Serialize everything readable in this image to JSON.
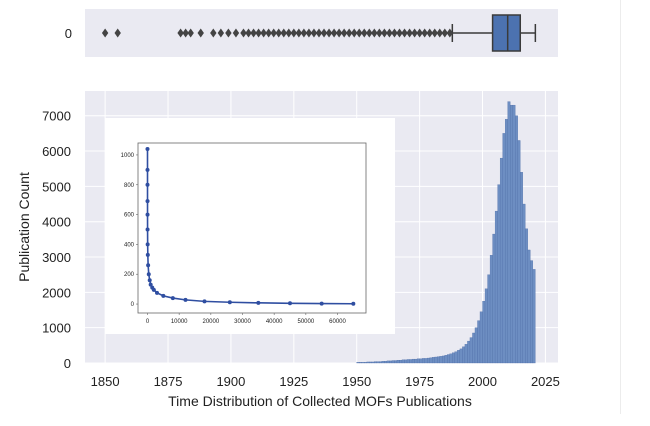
{
  "colors": {
    "plot_bg": "#eaeaf2",
    "grid": "#ffffff",
    "bar": "#6d8ec2",
    "bar_edge": "#4a6aa5",
    "box": "#4c72b0",
    "whisker": "#3a3a3a",
    "inset_line": "#2f4ea1"
  },
  "chart_data": [
    {
      "type": "box",
      "category_labels": [
        "0"
      ],
      "stats": {
        "whisker_low": 1988,
        "q1": 2004,
        "median": 2010,
        "q3": 2015,
        "whisker_high": 2021
      },
      "outliers": [
        1850,
        1855,
        1880,
        1882,
        1884,
        1888,
        1893,
        1896,
        1899,
        1902,
        1905,
        1907,
        1909,
        1911,
        1913,
        1915,
        1917,
        1919,
        1921,
        1923,
        1925,
        1927,
        1929,
        1931,
        1933,
        1935,
        1937,
        1939,
        1941,
        1943,
        1945,
        1947,
        1949,
        1951,
        1953,
        1955,
        1957,
        1959,
        1961,
        1963,
        1965,
        1967,
        1969,
        1971,
        1973,
        1975,
        1977,
        1979,
        1981,
        1983,
        1985,
        1987
      ],
      "xlim": [
        1842,
        2030
      ]
    },
    {
      "type": "bar",
      "xlabel": "Time Distribution of Collected MOFs Publications",
      "ylabel": "Publication Count",
      "xticks": [
        1850,
        1875,
        1900,
        1925,
        1950,
        1975,
        2000,
        2025
      ],
      "yticks": [
        0,
        1000,
        2000,
        3000,
        4000,
        5000,
        6000,
        7000
      ],
      "xlim": [
        1842,
        2030
      ],
      "ylim": [
        0,
        7700
      ],
      "x": [
        1950,
        1951,
        1952,
        1953,
        1954,
        1955,
        1956,
        1957,
        1958,
        1959,
        1960,
        1961,
        1962,
        1963,
        1964,
        1965,
        1966,
        1967,
        1968,
        1969,
        1970,
        1971,
        1972,
        1973,
        1974,
        1975,
        1976,
        1977,
        1978,
        1979,
        1980,
        1981,
        1982,
        1983,
        1984,
        1985,
        1986,
        1987,
        1988,
        1989,
        1990,
        1991,
        1992,
        1993,
        1994,
        1995,
        1996,
        1997,
        1998,
        1999,
        2000,
        2001,
        2002,
        2003,
        2004,
        2005,
        2006,
        2007,
        2008,
        2009,
        2010,
        2011,
        2012,
        2013,
        2014,
        2015,
        2016,
        2017,
        2018,
        2019,
        2020
      ],
      "values": [
        20,
        20,
        20,
        20,
        30,
        30,
        30,
        40,
        40,
        40,
        50,
        50,
        60,
        60,
        70,
        70,
        80,
        80,
        90,
        90,
        100,
        100,
        110,
        110,
        120,
        120,
        130,
        130,
        140,
        150,
        160,
        170,
        180,
        190,
        200,
        220,
        240,
        260,
        290,
        320,
        360,
        400,
        460,
        530,
        620,
        720,
        850,
        1000,
        1200,
        1450,
        1750,
        2100,
        2500,
        3050,
        3650,
        4300,
        5050,
        5800,
        6500,
        6900,
        7400,
        7300,
        7300,
        7000,
        6300,
        5400,
        4500,
        3800,
        3200,
        2900,
        2650
      ]
    },
    {
      "type": "line",
      "xticks": [
        0,
        10000,
        20000,
        30000,
        40000,
        50000,
        60000
      ],
      "yticks": [
        0,
        200,
        400,
        600,
        800,
        1000
      ],
      "xlim": [
        -3000,
        69000
      ],
      "ylim": [
        -60,
        1080
      ],
      "x": [
        1,
        2,
        3,
        5,
        10,
        20,
        50,
        100,
        200,
        400,
        700,
        1000,
        1500,
        2000,
        3000,
        5000,
        8000,
        12000,
        18000,
        26000,
        35000,
        45000,
        55000,
        65000
      ],
      "values": [
        1040,
        900,
        800,
        690,
        600,
        500,
        400,
        330,
        260,
        200,
        160,
        130,
        110,
        95,
        75,
        55,
        40,
        28,
        18,
        12,
        8,
        5,
        3,
        2
      ]
    }
  ]
}
